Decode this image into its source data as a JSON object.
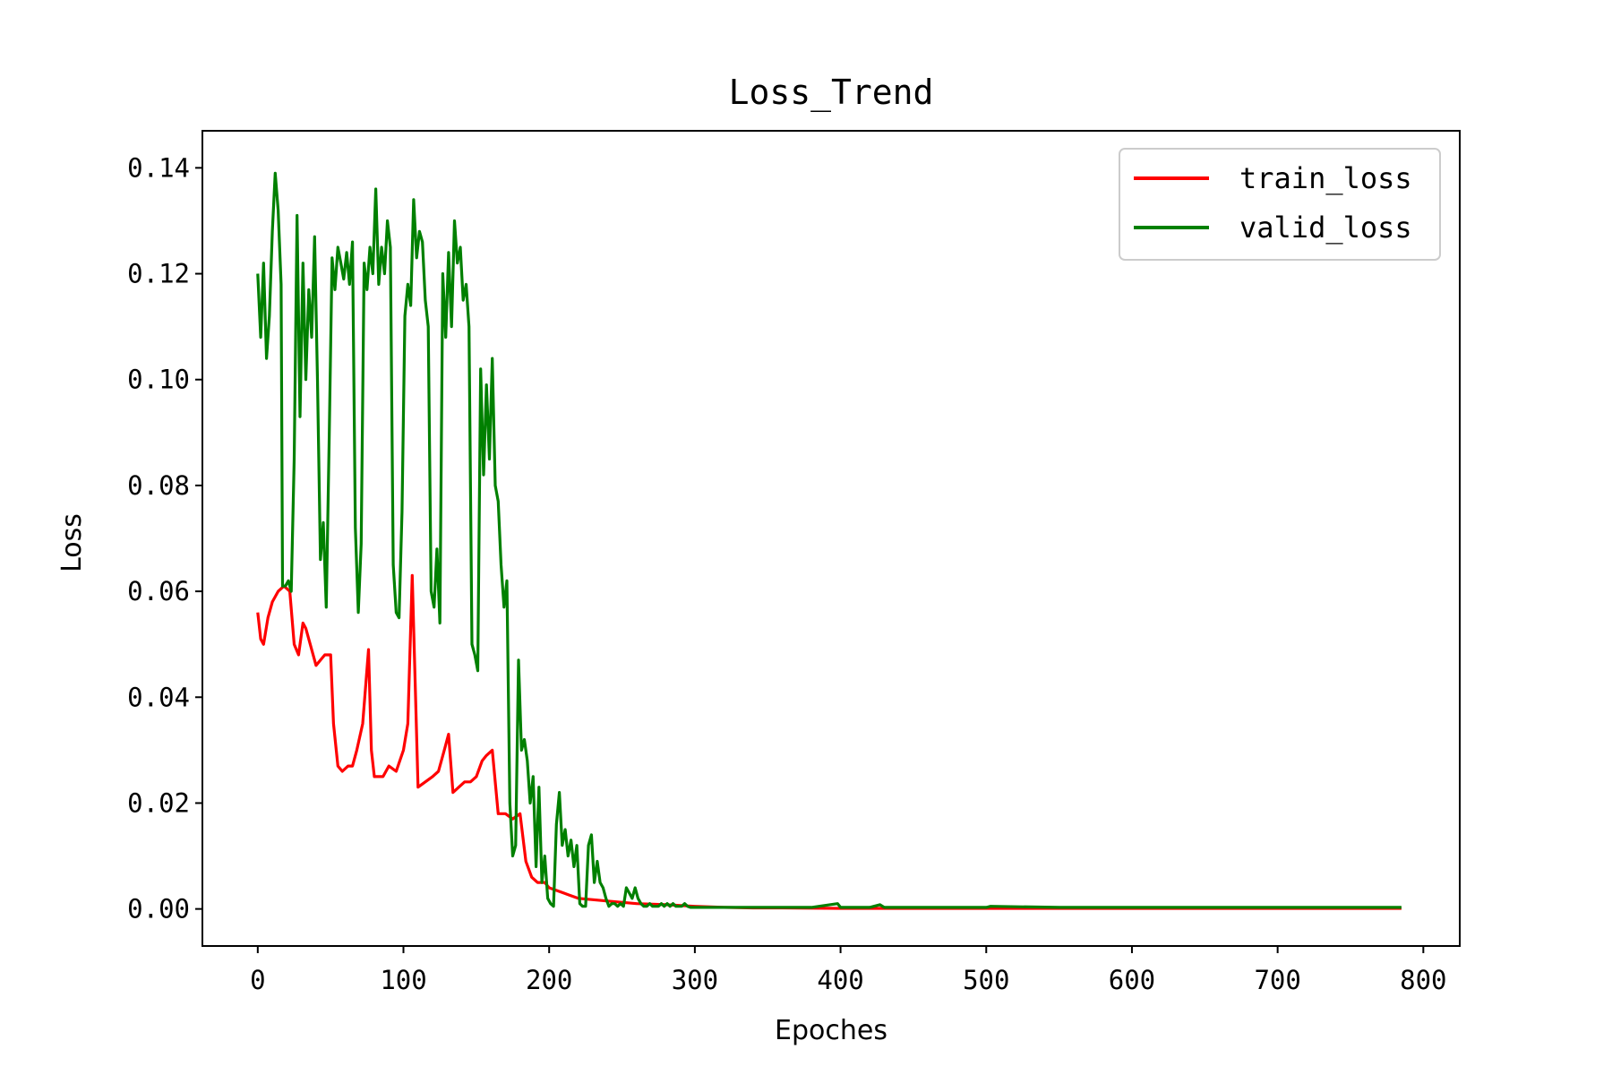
{
  "chart_data": {
    "type": "line",
    "title": "Loss_Trend",
    "xlabel": "Epoches",
    "ylabel": "Loss",
    "xlim": [
      -38,
      825
    ],
    "ylim": [
      -0.007,
      0.147
    ],
    "xticks": [
      0,
      100,
      200,
      300,
      400,
      500,
      600,
      700,
      800
    ],
    "yticks": [
      0.0,
      0.02,
      0.04,
      0.06,
      0.08,
      0.1,
      0.12,
      0.14
    ],
    "ytick_labels": [
      "0.00",
      "0.02",
      "0.04",
      "0.06",
      "0.08",
      "0.10",
      "0.12",
      "0.14"
    ],
    "grid": false,
    "legend": {
      "position": "top-right"
    },
    "series": [
      {
        "name": "train_loss",
        "color": "#ff0000",
        "x": [
          0,
          2,
          4,
          7,
          10,
          14,
          18,
          22,
          25,
          28,
          31,
          33,
          36,
          40,
          43,
          46,
          50,
          52,
          55,
          58,
          62,
          65,
          68,
          72,
          76,
          78,
          80,
          83,
          86,
          90,
          95,
          100,
          103,
          106,
          110,
          115,
          120,
          124,
          128,
          131,
          134,
          138,
          142,
          146,
          150,
          154,
          157,
          161,
          165,
          170,
          175,
          180,
          184,
          188,
          192,
          197,
          200,
          210,
          220,
          240,
          260,
          280,
          300,
          320,
          340,
          360,
          400,
          450,
          500,
          550,
          600,
          650,
          700,
          750,
          785
        ],
        "y": [
          0.056,
          0.051,
          0.05,
          0.055,
          0.058,
          0.06,
          0.061,
          0.06,
          0.05,
          0.048,
          0.054,
          0.053,
          0.05,
          0.046,
          0.047,
          0.048,
          0.048,
          0.035,
          0.027,
          0.026,
          0.027,
          0.027,
          0.03,
          0.035,
          0.049,
          0.03,
          0.025,
          0.025,
          0.025,
          0.027,
          0.026,
          0.03,
          0.035,
          0.063,
          0.023,
          0.024,
          0.025,
          0.026,
          0.03,
          0.033,
          0.022,
          0.023,
          0.024,
          0.024,
          0.025,
          0.028,
          0.029,
          0.03,
          0.018,
          0.018,
          0.017,
          0.018,
          0.009,
          0.006,
          0.005,
          0.005,
          0.004,
          0.003,
          0.002,
          0.0015,
          0.001,
          0.0008,
          0.0005,
          0.0003,
          0.0002,
          0.0002,
          0.0001,
          0.0001,
          0.0001,
          0.0001,
          0.0001,
          0.0001,
          0.0001,
          0.0001,
          0.0001
        ]
      },
      {
        "name": "valid_loss",
        "color": "#008000",
        "x": [
          0,
          2,
          4,
          6,
          8,
          10,
          12,
          14,
          16,
          17,
          19,
          21,
          23,
          25,
          27,
          29,
          31,
          33,
          35,
          37,
          39,
          41,
          43,
          45,
          47,
          49,
          51,
          53,
          55,
          57,
          59,
          61,
          63,
          65,
          67,
          69,
          71,
          73,
          75,
          77,
          79,
          81,
          83,
          85,
          87,
          89,
          91,
          93,
          95,
          97,
          99,
          101,
          103,
          105,
          107,
          109,
          111,
          113,
          115,
          117,
          119,
          121,
          123,
          125,
          127,
          129,
          131,
          133,
          135,
          137,
          139,
          141,
          143,
          145,
          147,
          149,
          151,
          153,
          155,
          157,
          159,
          161,
          163,
          165,
          167,
          169,
          171,
          173,
          175,
          177,
          179,
          181,
          183,
          185,
          187,
          189,
          191,
          193,
          195,
          197,
          199,
          201,
          203,
          205,
          207,
          209,
          211,
          213,
          215,
          217,
          219,
          221,
          223,
          225,
          227,
          229,
          231,
          233,
          235,
          237,
          239,
          241,
          243,
          245,
          247,
          249,
          251,
          253,
          255,
          257,
          259,
          261,
          263,
          265,
          267,
          269,
          271,
          273,
          275,
          277,
          279,
          281,
          283,
          285,
          287,
          289,
          291,
          293,
          295,
          297,
          300,
          310,
          320,
          330,
          340,
          350,
          360,
          380,
          398,
          400,
          402,
          420,
          427,
          430,
          460,
          500,
          503,
          550,
          600,
          650,
          700,
          750,
          785
        ],
        "y": [
          0.12,
          0.108,
          0.122,
          0.104,
          0.112,
          0.128,
          0.139,
          0.132,
          0.118,
          0.061,
          0.061,
          0.062,
          0.06,
          0.085,
          0.131,
          0.093,
          0.122,
          0.1,
          0.117,
          0.108,
          0.127,
          0.1,
          0.066,
          0.073,
          0.057,
          0.088,
          0.123,
          0.117,
          0.125,
          0.122,
          0.119,
          0.124,
          0.118,
          0.126,
          0.072,
          0.056,
          0.069,
          0.122,
          0.117,
          0.125,
          0.12,
          0.136,
          0.118,
          0.125,
          0.12,
          0.13,
          0.125,
          0.065,
          0.056,
          0.055,
          0.075,
          0.112,
          0.118,
          0.114,
          0.134,
          0.123,
          0.128,
          0.126,
          0.115,
          0.11,
          0.06,
          0.057,
          0.068,
          0.054,
          0.12,
          0.108,
          0.124,
          0.11,
          0.13,
          0.122,
          0.125,
          0.115,
          0.118,
          0.11,
          0.05,
          0.048,
          0.045,
          0.102,
          0.082,
          0.099,
          0.085,
          0.104,
          0.08,
          0.077,
          0.065,
          0.057,
          0.062,
          0.02,
          0.01,
          0.012,
          0.047,
          0.03,
          0.032,
          0.028,
          0.02,
          0.025,
          0.008,
          0.023,
          0.005,
          0.01,
          0.002,
          0.001,
          0.0005,
          0.016,
          0.022,
          0.012,
          0.015,
          0.01,
          0.013,
          0.008,
          0.012,
          0.001,
          0.0005,
          0.0005,
          0.012,
          0.014,
          0.005,
          0.009,
          0.005,
          0.004,
          0.002,
          0.0005,
          0.001,
          0.001,
          0.0005,
          0.001,
          0.0005,
          0.004,
          0.003,
          0.002,
          0.004,
          0.002,
          0.001,
          0.0005,
          0.0005,
          0.001,
          0.0005,
          0.0005,
          0.0005,
          0.001,
          0.0005,
          0.001,
          0.0005,
          0.001,
          0.0005,
          0.0005,
          0.0005,
          0.001,
          0.0005,
          0.0003,
          0.0003,
          0.0003,
          0.0003,
          0.0003,
          0.0003,
          0.0003,
          0.0003,
          0.0003,
          0.001,
          0.0003,
          0.0003,
          0.0003,
          0.0008,
          0.0003,
          0.0003,
          0.0003,
          0.0005,
          0.0003,
          0.0003,
          0.0003,
          0.0003,
          0.0003,
          0.0003
        ]
      }
    ]
  }
}
